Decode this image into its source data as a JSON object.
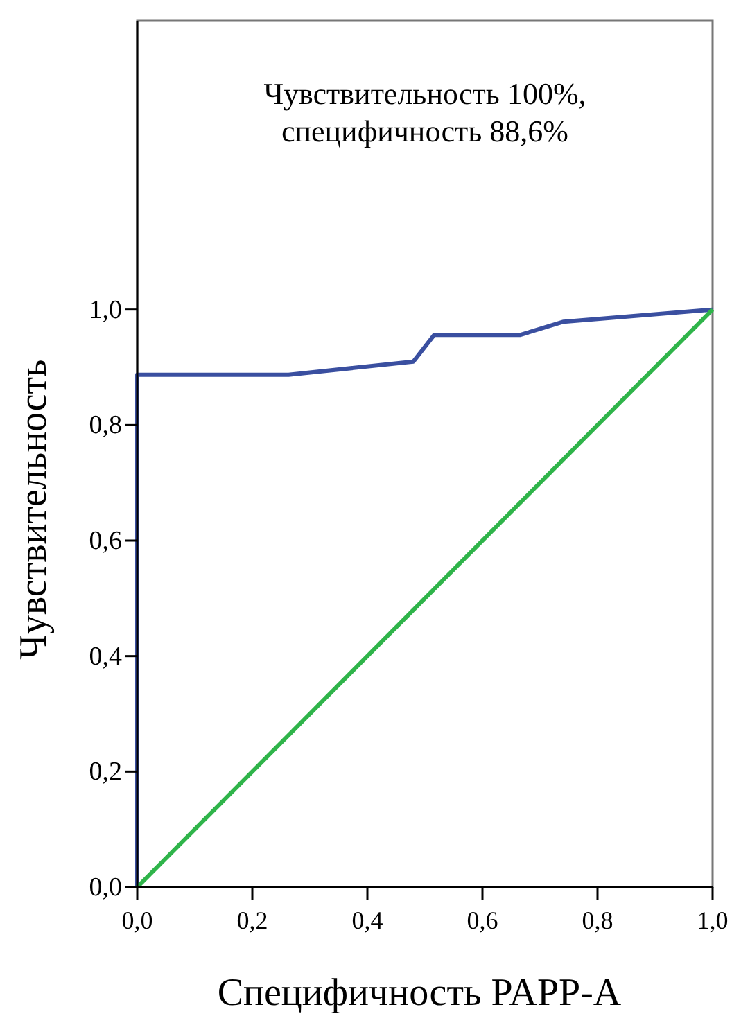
{
  "chart_data": {
    "type": "line",
    "xlabel": "Специфичность PAPP-A",
    "ylabel": "Чувствительность",
    "annotations": [
      "Чувствительность 100%,\nспецифичность 88,6%"
    ],
    "xlim": [
      0,
      1
    ],
    "ylim": [
      0,
      1.5
    ],
    "xticks": [
      {
        "value": 0,
        "label": "0,0"
      },
      {
        "value": 0.2,
        "label": "0,2"
      },
      {
        "value": 0.4,
        "label": "0,4"
      },
      {
        "value": 0.6,
        "label": "0,6"
      },
      {
        "value": 0.8,
        "label": "0,8"
      },
      {
        "value": 1,
        "label": "1,0"
      }
    ],
    "yticks": [
      {
        "value": 0,
        "label": "0,0"
      },
      {
        "value": 0.2,
        "label": "0,2"
      },
      {
        "value": 0.4,
        "label": "0,4"
      },
      {
        "value": 0.6,
        "label": "0,6"
      },
      {
        "value": 0.8,
        "label": "0,8"
      },
      {
        "value": 1,
        "label": "1,0"
      }
    ],
    "grid": false,
    "marker": "none",
    "line_style": "solid",
    "series": [
      {
        "color": "#3a4fa0",
        "x": [
          0,
          0,
          0.263,
          0.48,
          0.516,
          0.665,
          0.741,
          1
        ],
        "values": [
          0,
          0.887,
          0.887,
          0.91,
          0.956,
          0.956,
          0.979,
          1
        ]
      },
      {
        "color": "#2fb44a",
        "x": [
          0,
          1
        ],
        "values": [
          0,
          1
        ]
      }
    ]
  }
}
